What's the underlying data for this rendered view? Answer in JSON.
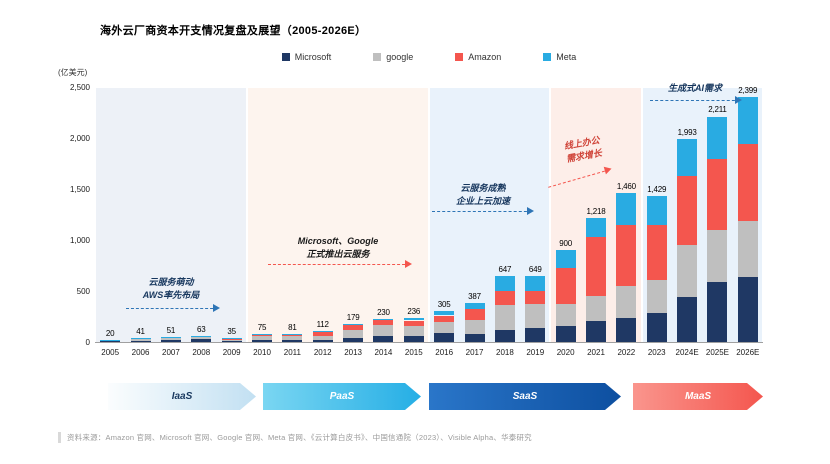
{
  "title": "海外云厂商资本开支情况复盘及展望（2005-2026E）",
  "legend": [
    {
      "label": "Microsoft",
      "color": "#1f3864"
    },
    {
      "label": "google",
      "color": "#bfbfbf"
    },
    {
      "label": "Amazon",
      "color": "#f4564e"
    },
    {
      "label": "Meta",
      "color": "#29abe2"
    }
  ],
  "chart_data": {
    "type": "bar",
    "stacked": true,
    "title": "海外云厂商资本开支情况复盘及展望（2005-2026E）",
    "ylabel": "(亿美元)",
    "ylim": [
      0,
      2500
    ],
    "ytick_values": [
      0,
      500,
      1000,
      1500,
      2000,
      2500
    ],
    "ytick_labels": [
      "0",
      "500",
      "1,000",
      "1,500",
      "2,000",
      "2,500"
    ],
    "categories": [
      "2005",
      "2006",
      "2007",
      "2008",
      "2009",
      "2010",
      "2011",
      "2012",
      "2013",
      "2014",
      "2015",
      "2016",
      "2017",
      "2018",
      "2019",
      "2020",
      "2021",
      "2022",
      "2023",
      "2024E",
      "2025E",
      "2026E"
    ],
    "series": [
      {
        "name": "Microsoft",
        "color": "#1f3864",
        "values": [
          9,
          14,
          20,
          31,
          15,
          19,
          23,
          24,
          42,
          55,
          59,
          91,
          81,
          116,
          139,
          154,
          206,
          238,
          282,
          445,
          585,
          640
        ]
      },
      {
        "name": "google",
        "color": "#bfbfbf",
        "values": [
          7,
          19,
          23,
          24,
          8,
          40,
          34,
          33,
          74,
          110,
          100,
          102,
          131,
          251,
          235,
          222,
          246,
          314,
          322,
          510,
          515,
          545
        ]
      },
      {
        "name": "Amazon",
        "color": "#f4564e",
        "values": [
          3,
          7,
          7,
          6,
          10,
          14,
          18,
          39,
          49,
          49,
          52,
          67,
          107,
          135,
          124,
          351,
          580,
          594,
          545,
          668,
          691,
          754
        ]
      },
      {
        "name": "Meta",
        "color": "#29abe2",
        "values": [
          1,
          1,
          1,
          2,
          2,
          2,
          6,
          16,
          14,
          16,
          25,
          45,
          68,
          145,
          151,
          173,
          186,
          314,
          280,
          370,
          420,
          460
        ]
      }
    ],
    "totals": [
      20,
      41,
      51,
      63,
      35,
      75,
      81,
      112,
      179,
      230,
      236,
      305,
      387,
      647,
      649,
      900,
      1218,
      1460,
      1429,
      1993,
      2211,
      2399
    ],
    "total_labels": [
      "20",
      "41",
      "51",
      "63",
      "35",
      "75",
      "81",
      "112",
      "179",
      "230",
      "236",
      "305",
      "387",
      "647",
      "649",
      "900",
      "1,218",
      "1,460",
      "1,429",
      "1,993",
      "2,211",
      "2,399"
    ],
    "legend_position": "top",
    "grid": false
  },
  "phases": [
    {
      "start_index": 0,
      "end_index": 4,
      "bg": "#edf1f7"
    },
    {
      "start_index": 5,
      "end_index": 10,
      "bg": "#fdf4ee"
    },
    {
      "start_index": 11,
      "end_index": 14,
      "bg": "#e9f2fb"
    },
    {
      "start_index": 15,
      "end_index": 17,
      "bg": "#fdeee9"
    },
    {
      "start_index": 18,
      "end_index": 21,
      "bg": "#e9f2fb"
    }
  ],
  "annotations": [
    {
      "lines": [
        "云服务萌动",
        "AWS率先布局"
      ],
      "color": "#17375e",
      "arrow_color": "#2e75b6"
    },
    {
      "lines": [
        "Microsoft、Google",
        "正式推出云服务"
      ],
      "color": "#1a1a1a",
      "arrow_color": "#f4564e"
    },
    {
      "lines": [
        "云服务成熟",
        "企业上云加速"
      ],
      "color": "#17375e",
      "arrow_color": "#2e75b6"
    },
    {
      "lines": [
        "线上办公",
        "需求增长"
      ],
      "color": "#d0453a",
      "arrow_color": "#f4564e"
    },
    {
      "lines": [
        "生成式AI需求"
      ],
      "color": "#17375e",
      "arrow_color": "#2e75b6"
    }
  ],
  "stage_arrows": [
    {
      "label": "IaaS",
      "color_start": "#fbfdfe",
      "color_end": "#c2e0f2",
      "text_color": "#17375e"
    },
    {
      "label": "PaaS",
      "color_start": "#7ad6f2",
      "color_end": "#25aee5",
      "text_color": "#ffffff"
    },
    {
      "label": "SaaS",
      "color_start": "#2a76c9",
      "color_end": "#0d4fa0",
      "text_color": "#ffffff"
    },
    {
      "label": "MaaS",
      "color_start": "#fa958d",
      "color_end": "#f4564e",
      "text_color": "#ffffff"
    }
  ],
  "source": "资料来源：Amazon 官网、Microsoft 官网、Google 官网、Meta 官网、《云计算白皮书》、中国信通院（2023）、Visible Alpha、华泰研究"
}
